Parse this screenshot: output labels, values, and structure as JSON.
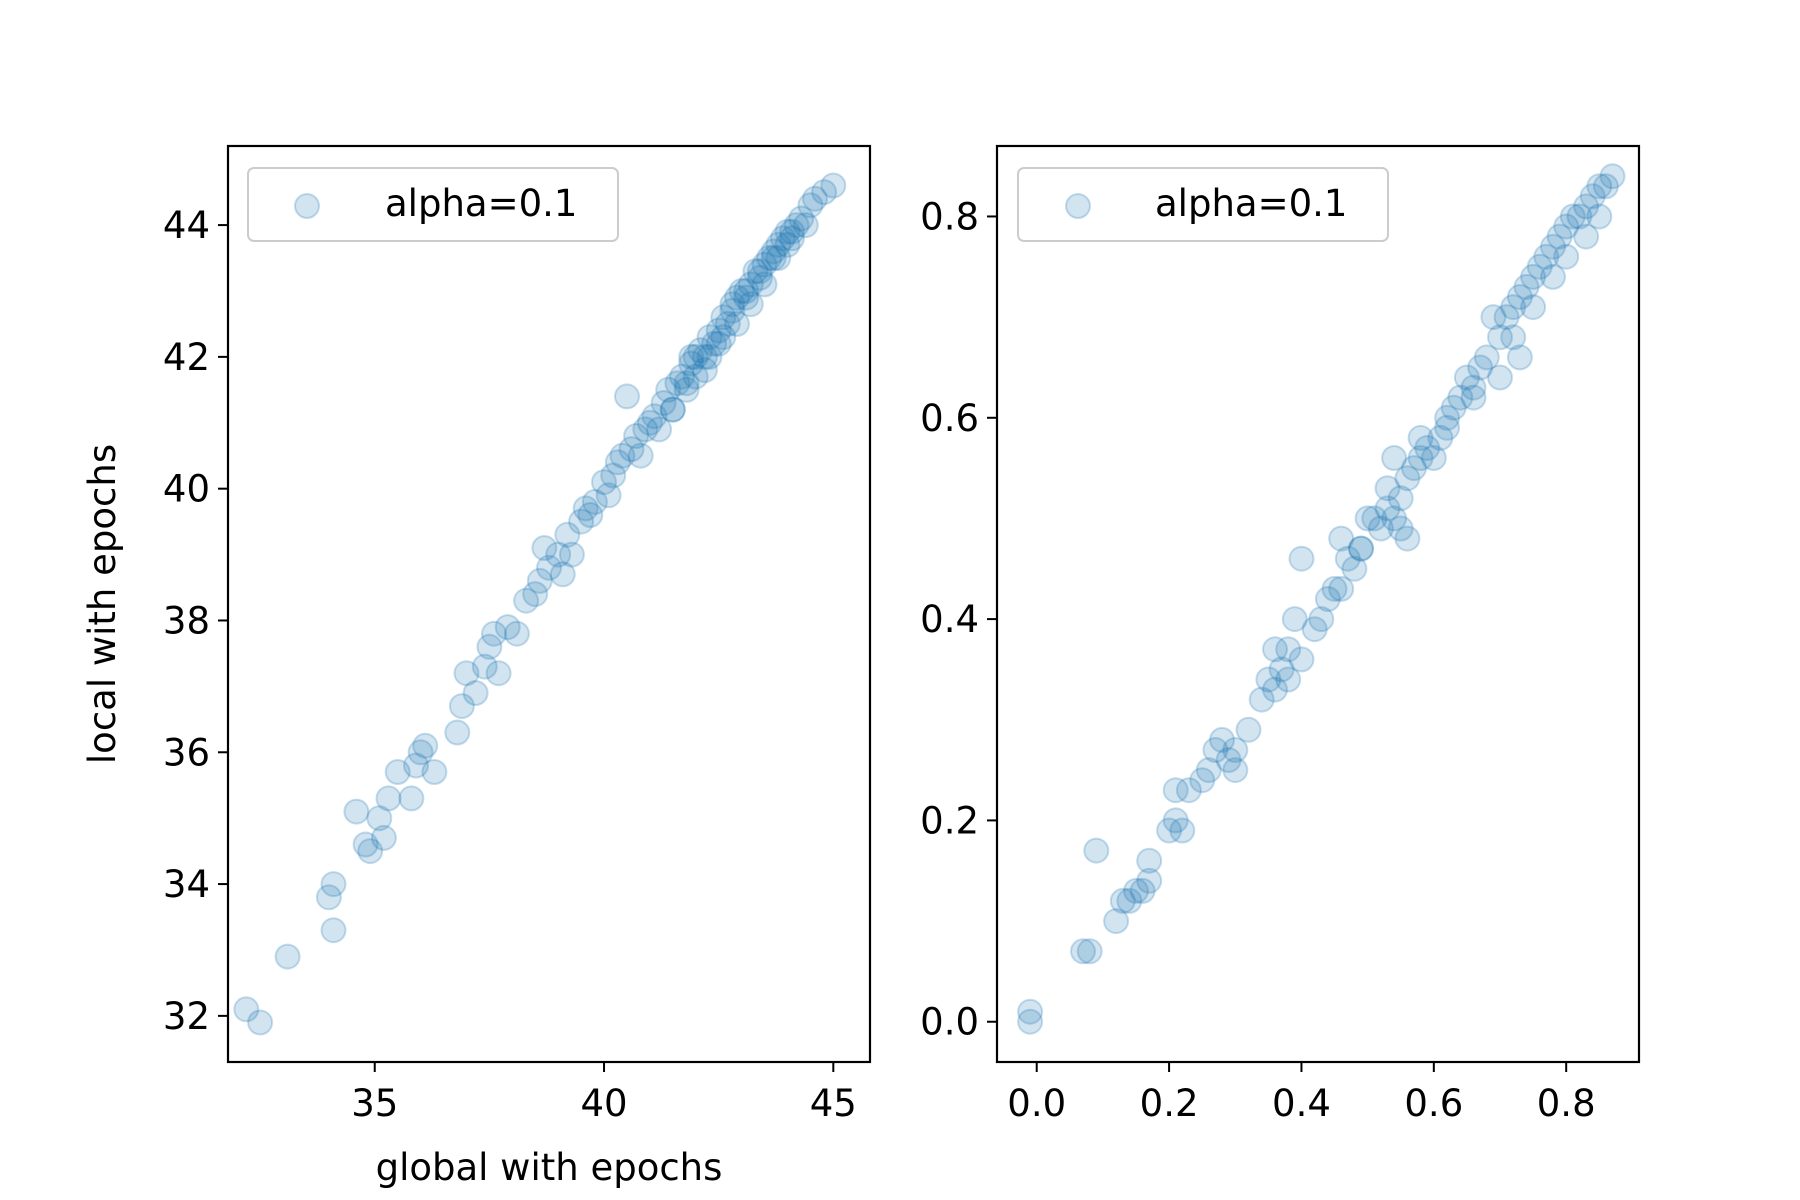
{
  "colors": {
    "point": "#1f77b4",
    "axes": "#000000",
    "background": "#ffffff",
    "legend_border": "#cccccc"
  },
  "chart_data": [
    {
      "type": "scatter",
      "title": "",
      "xlabel": "global with epochs",
      "ylabel": "local with epochs",
      "xlim": [
        31.8,
        45.8
      ],
      "ylim": [
        31.3,
        45.2
      ],
      "xticks": [
        35,
        40,
        45
      ],
      "yticks": [
        32,
        34,
        36,
        38,
        40,
        42,
        44
      ],
      "grid": false,
      "legend": {
        "position": "top-left",
        "entries": [
          "alpha=0.1"
        ]
      },
      "series": [
        {
          "name": "alpha=0.1",
          "alpha": 0.2,
          "x": [
            32.2,
            32.5,
            33.1,
            34.0,
            34.1,
            34.1,
            34.6,
            34.8,
            34.9,
            35.1,
            35.2,
            35.3,
            35.5,
            35.8,
            35.9,
            36.0,
            36.1,
            36.3,
            36.8,
            36.9,
            37.0,
            37.2,
            37.4,
            37.5,
            37.6,
            37.7,
            37.9,
            38.1,
            38.3,
            38.5,
            38.6,
            38.7,
            38.8,
            39.0,
            39.1,
            39.2,
            39.3,
            39.5,
            39.6,
            39.7,
            39.8,
            40.0,
            40.1,
            40.2,
            40.3,
            40.4,
            40.5,
            40.6,
            40.7,
            40.8,
            40.9,
            41.0,
            41.1,
            41.2,
            41.3,
            41.4,
            41.5,
            41.6,
            41.7,
            41.8,
            41.9,
            42.0,
            42.1,
            42.2,
            42.3,
            42.4,
            42.5,
            42.6,
            42.7,
            42.8,
            42.9,
            43.0,
            43.1,
            43.2,
            43.3,
            43.4,
            43.5,
            43.6,
            43.7,
            43.8,
            43.9,
            44.0,
            44.1,
            44.2,
            44.3,
            44.4,
            44.5,
            44.6,
            44.8,
            45.0,
            41.5,
            41.8,
            42.0,
            42.3,
            42.6,
            42.9,
            43.2,
            43.5,
            43.8,
            44.1,
            41.9,
            42.2,
            42.5,
            42.8,
            43.1,
            43.4,
            43.7,
            44.0
          ],
          "y": [
            32.1,
            31.9,
            32.9,
            33.8,
            34.0,
            33.3,
            35.1,
            34.6,
            34.5,
            35.0,
            34.7,
            35.3,
            35.7,
            35.3,
            35.8,
            36.0,
            36.1,
            35.7,
            36.3,
            36.7,
            37.2,
            36.9,
            37.3,
            37.6,
            37.8,
            37.2,
            37.9,
            37.8,
            38.3,
            38.4,
            38.6,
            39.1,
            38.8,
            39.0,
            38.7,
            39.3,
            39.0,
            39.5,
            39.7,
            39.6,
            39.8,
            40.1,
            39.9,
            40.2,
            40.4,
            40.5,
            41.4,
            40.6,
            40.8,
            40.5,
            40.9,
            41.0,
            41.1,
            40.9,
            41.3,
            41.5,
            41.2,
            41.6,
            41.7,
            41.5,
            41.9,
            42.0,
            42.1,
            41.8,
            42.3,
            42.2,
            42.4,
            42.6,
            42.5,
            42.8,
            42.9,
            43.0,
            42.9,
            43.1,
            43.3,
            43.2,
            43.4,
            43.5,
            43.6,
            43.7,
            43.8,
            43.9,
            43.9,
            44.0,
            44.1,
            44.0,
            44.3,
            44.4,
            44.5,
            44.6,
            41.2,
            41.6,
            41.7,
            42.0,
            42.3,
            42.5,
            42.8,
            43.1,
            43.5,
            43.8,
            42.0,
            42.0,
            42.2,
            42.7,
            43.0,
            43.3,
            43.5,
            43.7
          ]
        }
      ]
    },
    {
      "type": "scatter",
      "title": "",
      "xlabel": "",
      "ylabel": "",
      "xlim": [
        -0.06,
        0.91
      ],
      "ylim": [
        -0.04,
        0.87
      ],
      "xticks": [
        0.0,
        0.2,
        0.4,
        0.6,
        0.8
      ],
      "yticks": [
        0.0,
        0.2,
        0.4,
        0.6,
        0.8
      ],
      "tick_format": "1dp",
      "grid": false,
      "legend": {
        "position": "top-left",
        "entries": [
          "alpha=0.1"
        ]
      },
      "series": [
        {
          "name": "alpha=0.1",
          "alpha": 0.2,
          "x": [
            -0.01,
            -0.01,
            0.07,
            0.08,
            0.09,
            0.12,
            0.13,
            0.14,
            0.15,
            0.16,
            0.17,
            0.17,
            0.2,
            0.21,
            0.21,
            0.22,
            0.23,
            0.25,
            0.26,
            0.28,
            0.29,
            0.3,
            0.32,
            0.34,
            0.35,
            0.36,
            0.37,
            0.38,
            0.39,
            0.4,
            0.4,
            0.42,
            0.43,
            0.44,
            0.45,
            0.46,
            0.47,
            0.48,
            0.49,
            0.5,
            0.51,
            0.52,
            0.53,
            0.54,
            0.55,
            0.55,
            0.56,
            0.57,
            0.58,
            0.59,
            0.6,
            0.61,
            0.62,
            0.63,
            0.64,
            0.65,
            0.66,
            0.67,
            0.68,
            0.69,
            0.7,
            0.71,
            0.72,
            0.73,
            0.74,
            0.75,
            0.76,
            0.77,
            0.78,
            0.79,
            0.8,
            0.81,
            0.82,
            0.83,
            0.84,
            0.85,
            0.86,
            0.87,
            0.54,
            0.56,
            0.53,
            0.66,
            0.7,
            0.73,
            0.58,
            0.62,
            0.78,
            0.8,
            0.83,
            0.85,
            0.72,
            0.75,
            0.38,
            0.36,
            0.46,
            0.49,
            0.27,
            0.3
          ],
          "y": [
            0.0,
            0.01,
            0.07,
            0.07,
            0.17,
            0.1,
            0.12,
            0.12,
            0.13,
            0.13,
            0.14,
            0.16,
            0.19,
            0.2,
            0.23,
            0.19,
            0.23,
            0.24,
            0.25,
            0.28,
            0.26,
            0.27,
            0.29,
            0.32,
            0.34,
            0.33,
            0.35,
            0.37,
            0.4,
            0.36,
            0.46,
            0.39,
            0.4,
            0.42,
            0.43,
            0.48,
            0.46,
            0.45,
            0.47,
            0.5,
            0.5,
            0.49,
            0.51,
            0.56,
            0.52,
            0.49,
            0.54,
            0.55,
            0.56,
            0.57,
            0.56,
            0.58,
            0.59,
            0.61,
            0.62,
            0.64,
            0.63,
            0.65,
            0.66,
            0.7,
            0.68,
            0.7,
            0.71,
            0.72,
            0.73,
            0.74,
            0.75,
            0.76,
            0.77,
            0.78,
            0.79,
            0.8,
            0.8,
            0.81,
            0.82,
            0.83,
            0.83,
            0.84,
            0.5,
            0.48,
            0.53,
            0.62,
            0.64,
            0.66,
            0.58,
            0.6,
            0.74,
            0.76,
            0.78,
            0.8,
            0.68,
            0.71,
            0.34,
            0.37,
            0.43,
            0.47,
            0.27,
            0.25
          ]
        }
      ]
    }
  ]
}
